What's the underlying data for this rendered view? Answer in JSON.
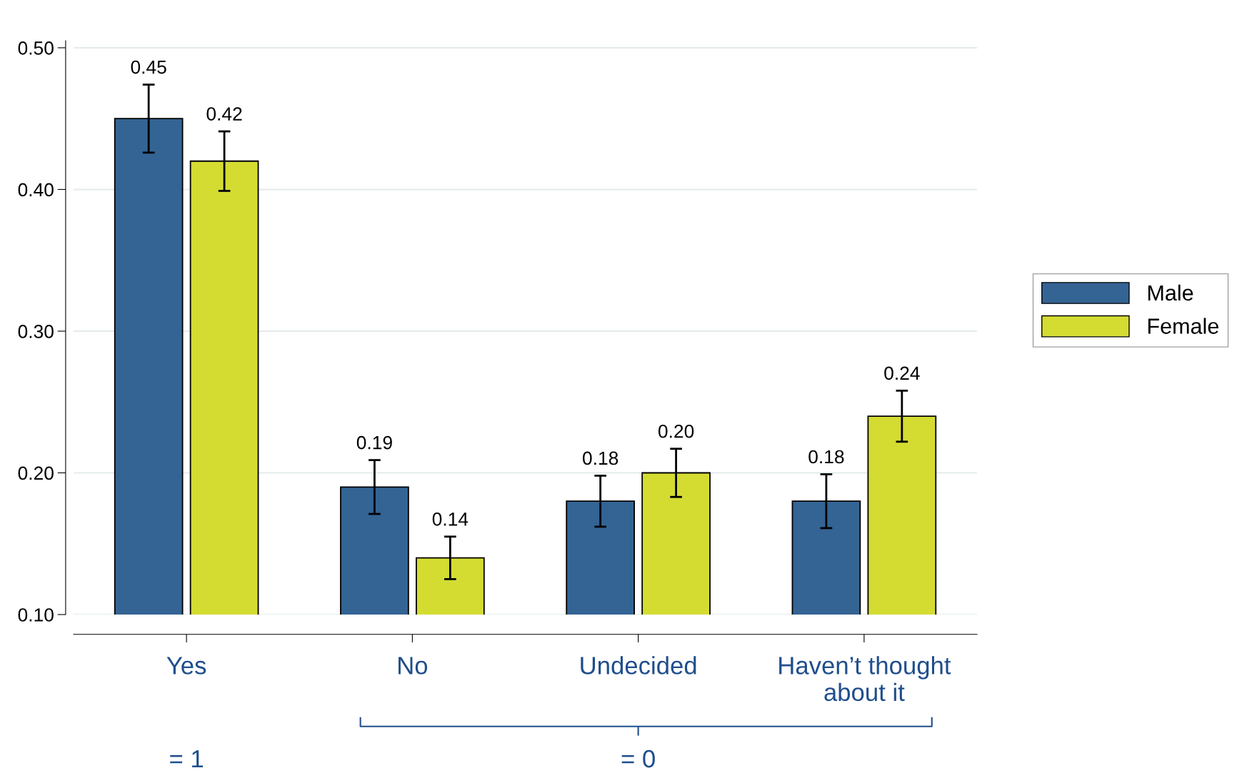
{
  "chart_data": {
    "type": "bar",
    "categories": [
      "Yes",
      "No",
      "Undecided",
      "Haven’t thought\nabout it"
    ],
    "series": [
      {
        "name": "Male",
        "color": "#346494",
        "values": [
          0.45,
          0.19,
          0.18,
          0.18
        ],
        "value_labels": [
          "0.45",
          "0.19",
          "0.18",
          "0.18"
        ],
        "errors": [
          0.024,
          0.019,
          0.018,
          0.019
        ]
      },
      {
        "name": "Female",
        "color": "#d4dc32",
        "values": [
          0.42,
          0.14,
          0.2,
          0.24
        ],
        "value_labels": [
          "0.42",
          "0.14",
          "0.20",
          "0.24"
        ],
        "errors": [
          0.021,
          0.015,
          0.017,
          0.018
        ]
      }
    ],
    "ylim": [
      0.1,
      0.505
    ],
    "yticks": [
      {
        "value": 0.1,
        "label": "0.10"
      },
      {
        "value": 0.2,
        "label": "0.20"
      },
      {
        "value": 0.3,
        "label": "0.30"
      },
      {
        "value": 0.4,
        "label": "0.40"
      },
      {
        "value": 0.5,
        "label": "0.50"
      }
    ],
    "grid": "y",
    "legend": "right",
    "annotations": [
      "= 1",
      "= 0"
    ]
  }
}
